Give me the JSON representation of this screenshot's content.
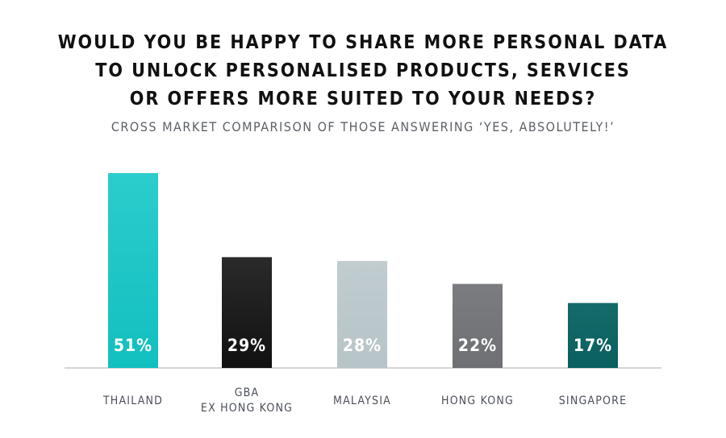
{
  "chart_data": {
    "type": "bar",
    "title_lines": [
      "WOULD YOU BE HAPPY TO SHARE MORE PERSONAL DATA",
      "TO UNLOCK PERSONALISED PRODUCTS, SERVICES",
      "OR OFFERS MORE SUITED TO YOUR NEEDS?"
    ],
    "subtitle": "CROSS MARKET COMPARISON OF THOSE ANSWERING ‘YES, ABSOLUTELY!’",
    "categories": [
      [
        "THAILAND"
      ],
      [
        "GBA",
        "EX HONG KONG"
      ],
      [
        "MALAYSIA"
      ],
      [
        "HONG KONG"
      ],
      [
        "SINGAPORE"
      ]
    ],
    "values": [
      51,
      29,
      28,
      22,
      17
    ],
    "value_labels": [
      "51%",
      "29%",
      "28%",
      "22%",
      "17%"
    ],
    "colors": [
      "#12bfc0",
      "#111111",
      "#b7c4c8",
      "#6e7074",
      "#0a5f5f"
    ],
    "gradient_tops": [
      "#2ccccc",
      "#2a2a2a",
      "#c0cccf",
      "#7a7c80",
      "#156a6a"
    ],
    "ylim": [
      0,
      51
    ],
    "grid": false,
    "legend": "none",
    "baseline_color": "#c9c9c9"
  }
}
